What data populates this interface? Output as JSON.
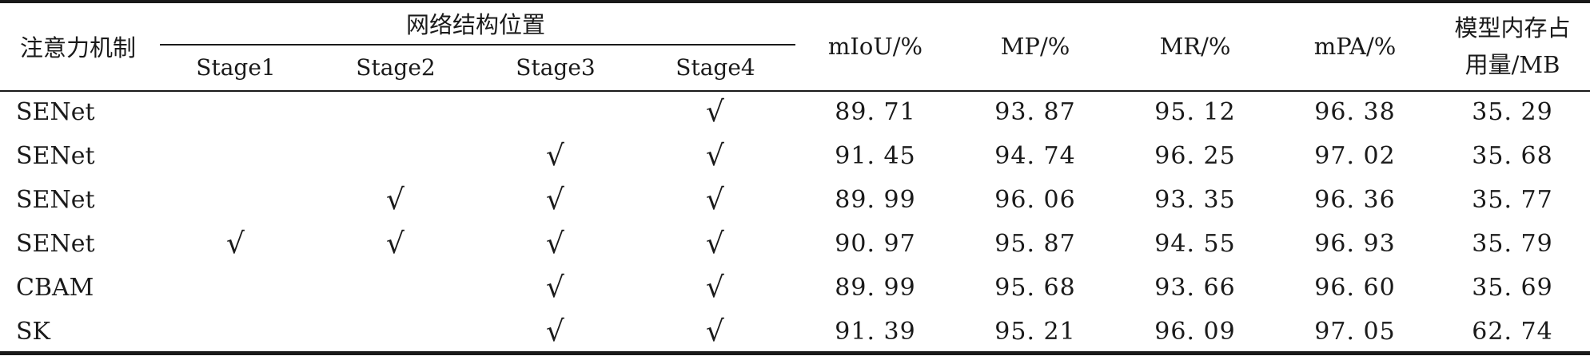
{
  "table": {
    "header": {
      "mechanism": "注意力机制",
      "position_group": "网络结构位置",
      "stages": [
        "Stage1",
        "Stage2",
        "Stage3",
        "Stage4"
      ],
      "miou": "mIoU/%",
      "mp": "MP/%",
      "mr": "MR/%",
      "mpa": "mPA/%",
      "memory_line1": "模型内存占",
      "memory_line2": "用量/MB"
    },
    "check_symbol": "√",
    "rows": [
      {
        "name": "SENet",
        "stage1": "",
        "stage2": "",
        "stage3": "",
        "stage4": "√",
        "miou": "89. 71",
        "mp": "93. 87",
        "mr": "95. 12",
        "mpa": "96. 38",
        "memory": "35. 29"
      },
      {
        "name": "SENet",
        "stage1": "",
        "stage2": "",
        "stage3": "√",
        "stage4": "√",
        "miou": "91. 45",
        "mp": "94. 74",
        "mr": "96. 25",
        "mpa": "97. 02",
        "memory": "35. 68"
      },
      {
        "name": "SENet",
        "stage1": "",
        "stage2": "√",
        "stage3": "√",
        "stage4": "√",
        "miou": "89. 99",
        "mp": "96. 06",
        "mr": "93. 35",
        "mpa": "96. 36",
        "memory": "35. 77"
      },
      {
        "name": "SENet",
        "stage1": "√",
        "stage2": "√",
        "stage3": "√",
        "stage4": "√",
        "miou": "90. 97",
        "mp": "95. 87",
        "mr": "94. 55",
        "mpa": "96. 93",
        "memory": "35. 79"
      },
      {
        "name": "CBAM",
        "stage1": "",
        "stage2": "",
        "stage3": "√",
        "stage4": "√",
        "miou": "89. 99",
        "mp": "95. 68",
        "mr": "93. 66",
        "mpa": "96. 60",
        "memory": "35. 69"
      },
      {
        "name": "SK",
        "stage1": "",
        "stage2": "",
        "stage3": "√",
        "stage4": "√",
        "miou": "91. 39",
        "mp": "95. 21",
        "mr": "96. 09",
        "mpa": "97. 05",
        "memory": "62. 74"
      }
    ]
  }
}
